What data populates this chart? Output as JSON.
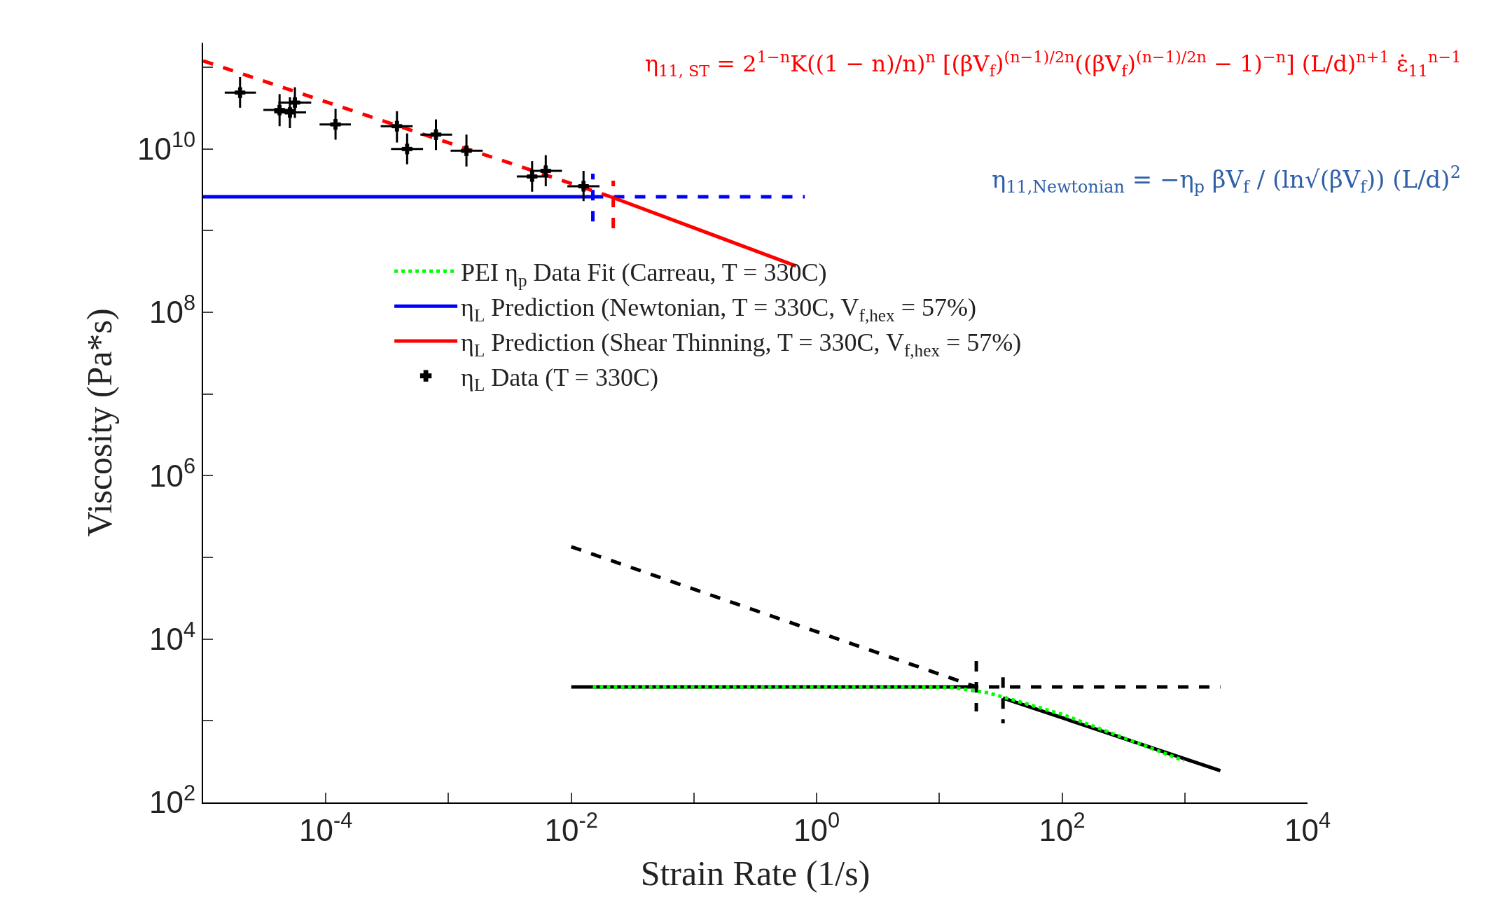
{
  "chart_data": {
    "type": "line",
    "xlabel": "Strain Rate (1/s)",
    "ylabel": "Viscosity (Pa*s)",
    "log": "xy",
    "grid": false,
    "legend": "center",
    "xlim": [
      1e-05,
      10000.0
    ],
    "ylim": [
      100,
      200000000000.0
    ],
    "xticks": [
      {
        "value": 1e-05,
        "label": null
      },
      {
        "value": 0.0001,
        "label": "10$^{-4}$"
      },
      {
        "value": 0.001,
        "label": null
      },
      {
        "value": 0.01,
        "label": "10$^{-2}$"
      },
      {
        "value": 0.1,
        "label": null
      },
      {
        "value": 1,
        "label": "10$^{0}$"
      },
      {
        "value": 10,
        "label": null
      },
      {
        "value": 100,
        "label": "10$^{2}$"
      },
      {
        "value": 1000,
        "label": null
      },
      {
        "value": 10000,
        "label": "10$^{4}$"
      }
    ],
    "yticks": [
      {
        "value": 100,
        "label": "10$^{2}$"
      },
      {
        "value": 1000,
        "label": null
      },
      {
        "value": 10000,
        "label": "10$^{4}$"
      },
      {
        "value": 100000.0,
        "label": null
      },
      {
        "value": 1000000.0,
        "label": "10$^{6}$"
      },
      {
        "value": 10000000.0,
        "label": null
      },
      {
        "value": 100000000.0,
        "label": "10$^{8}$"
      },
      {
        "value": 1000000000.0,
        "label": null
      },
      {
        "value": 10000000000.0,
        "label": "10$^{10}$"
      },
      {
        "value": 100000000000.0,
        "label": null
      }
    ],
    "annotations": [
      "η$_{11, ST}$ = 2$^{1−n}$K((1 − n)/n)$^{n}$ [(βV$_{f}$)$^{(n−1)/2n}$((βV$_{f}$)$^{(n−1)/2n}$ − 1)$^{−n}$] (L/d)$^{n+1}$ ε̇$_{11}$$^{n−1}$",
      "η$_{11,Newtonian}$ = −η$_{p}$ βV$_{f}$ / (ln√(βV$_{f}$)) (L/d)$^{2}$"
    ],
    "series": [
      {
        "line_style": "solid",
        "color": "#000000",
        "x": [
          0.01,
          20
        ],
        "values": [
          2600,
          2600
        ]
      },
      {
        "line_style": "dashed",
        "color": "#000000",
        "x": [
          0.01,
          20,
          1950
        ],
        "values": [
          135000,
          2600,
          2600
        ]
      },
      {
        "line_style": "solid",
        "color": "#000000",
        "x": [
          33,
          1950
        ],
        "values": [
          1900,
          245
        ]
      },
      {
        "line_style": "dashed",
        "color": "#000000",
        "x": [
          20,
          20
        ],
        "values": [
          5400,
          1300
        ]
      },
      {
        "line_style": "dashed",
        "color": "#000000",
        "x": [
          33,
          33
        ],
        "values": [
          3400,
          930
        ]
      },
      {
        "line_style": "dashed",
        "color": "#0000ff",
        "x": [
          0.015,
          0.8
        ],
        "values": [
          2600000000.0,
          2600000000.0
        ]
      },
      {
        "line_style": "dashed",
        "color": "#0000ff",
        "x": [
          0.015,
          0.015
        ],
        "values": [
          1300000000.0,
          5000000000.0
        ]
      },
      {
        "line_style": "dashed",
        "color": "#ff0000",
        "x": [
          1e-05,
          0.021
        ],
        "values": [
          120000000000.0,
          2600000000.0
        ]
      },
      {
        "line_style": "dashed",
        "color": "#ff0000",
        "x": [
          0.022,
          0.022
        ],
        "values": [
          1070000000.0,
          4100000000.0
        ]
      },
      {
        "line_style": "dotted",
        "color": "#00ff00",
        "name": "PEI η$_{p}$ Data Fit (Carreau, T = 330C)",
        "x": [
          0.015,
          5,
          13,
          25,
          40,
          100,
          980
        ],
        "values": [
          2600,
          2600,
          2550,
          2200,
          1800,
          1200,
          325
        ]
      },
      {
        "line_style": "solid",
        "color": "#0000ff",
        "name": "η$_{L}$ Prediction (Newtonian, T = 330C, V$_{f,hex}$ = 57%)",
        "x": [
          1e-05,
          0.015
        ],
        "values": [
          2600000000.0,
          2600000000.0
        ]
      },
      {
        "line_style": "solid",
        "color": "#ff0000",
        "name": "η$_{L}$ Prediction (Shear Thinning, T = 330C, V$_{f,hex}$ = 57%)",
        "x": [
          0.021,
          0.68
        ],
        "values": [
          2600000000.0,
          370000000.0
        ]
      },
      {
        "type": "scatter",
        "marker": "cross",
        "color": "#000000",
        "name": "η$_{L}$ Data (T = 330C)",
        "x": [
          2e-05,
          4.2e-05,
          5.1e-05,
          5.6e-05,
          0.00012,
          0.00038,
          0.00046,
          0.00079,
          0.0014,
          0.0048,
          0.0062,
          0.0126
        ],
        "values": [
          49000000000.0,
          30000000000.0,
          28000000000.0,
          37000000000.0,
          20000000000.0,
          19000000000.0,
          10000000000.0,
          15000000000.0,
          9500000000.0,
          4600000000.0,
          5400000000.0,
          3500000000.0
        ],
        "errors": [
          [
            32000000000.0,
            76000000000.0
          ],
          [
            19000000000.0,
            47000000000.0
          ],
          [
            18000000000.0,
            43000000000.0
          ],
          [
            24000000000.0,
            57000000000.0
          ],
          [
            13000000000.0,
            31000000000.0
          ],
          [
            12000000000.0,
            29000000000.0
          ],
          [
            6500000000.0,
            15500000000.0
          ],
          [
            9700000000.0,
            23000000000.0
          ],
          [
            6100000000.0,
            15000000000.0
          ],
          [
            3000000000.0,
            7100000000.0
          ],
          [
            3500000000.0,
            8400000000.0
          ],
          [
            2300000000.0,
            5400000000.0
          ]
        ],
        "xerrors": [
          [
            1.5e-05,
            2.7e-05
          ],
          [
            3.1e-05,
            5.7e-05
          ],
          [
            3.8e-05,
            6.9e-05
          ],
          [
            4.1e-05,
            7.6e-05
          ],
          [
            8.9e-05,
            0.00016
          ],
          [
            0.00028,
            0.00051
          ],
          [
            0.00034,
            0.00062
          ],
          [
            0.00059,
            0.00107
          ],
          [
            0.00104,
            0.0019
          ],
          [
            0.0036,
            0.0065
          ],
          [
            0.0046,
            0.0084
          ],
          [
            0.0093,
            0.017
          ]
        ]
      }
    ]
  }
}
